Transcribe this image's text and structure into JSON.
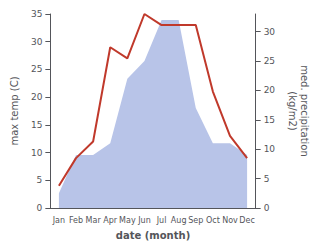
{
  "chart_data": {
    "type": "line",
    "xlabel": "date (month)",
    "ylabel": "max temp (C)",
    "y2label": "med. precipitation\n(kg/m2)",
    "categories": [
      "Jan",
      "Feb",
      "Mar",
      "Apr",
      "May",
      "Jun",
      "Jul",
      "Aug",
      "Sep",
      "Oct",
      "Nov",
      "Dec"
    ],
    "series": [
      {
        "type": "area",
        "axis": "y2",
        "color": "#b8c4e8",
        "values": [
          2.5,
          9,
          9,
          11,
          22,
          25,
          32,
          32,
          17,
          11,
          11,
          9
        ]
      },
      {
        "type": "line",
        "color": "#c0392b",
        "values": [
          4,
          9,
          12,
          29,
          27,
          35,
          33,
          33,
          33,
          21,
          13,
          9
        ]
      }
    ],
    "ylim": [
      0,
      35
    ],
    "yticks": [
      0,
      5,
      10,
      15,
      20,
      25,
      30,
      35
    ],
    "y2lim": [
      0,
      33
    ],
    "y2ticks": [
      0,
      5,
      10,
      15,
      20,
      25,
      30
    ],
    "grid": false
  }
}
